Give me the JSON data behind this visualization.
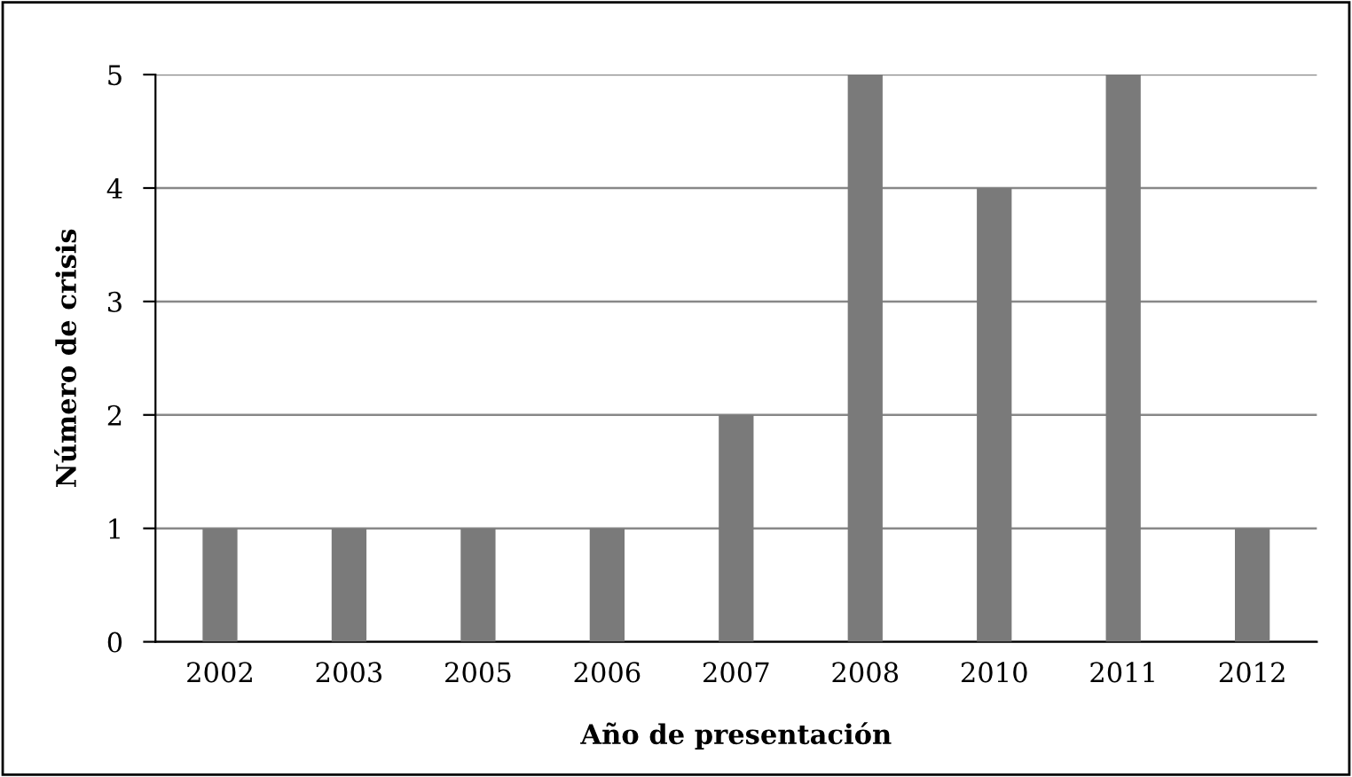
{
  "chart_data": {
    "type": "bar",
    "xlabel": "Año de presentación",
    "ylabel": "Número de crisis",
    "categories": [
      "2002",
      "2003",
      "2005",
      "2006",
      "2007",
      "2008",
      "2010",
      "2011",
      "2012"
    ],
    "values": [
      1,
      1,
      1,
      1,
      2,
      5,
      4,
      5,
      1
    ],
    "color": "#7a7a7a",
    "ylim": [
      0,
      5
    ],
    "yticks": [
      0,
      1,
      2,
      3,
      4,
      5
    ],
    "grid": "y",
    "legend": false
  }
}
